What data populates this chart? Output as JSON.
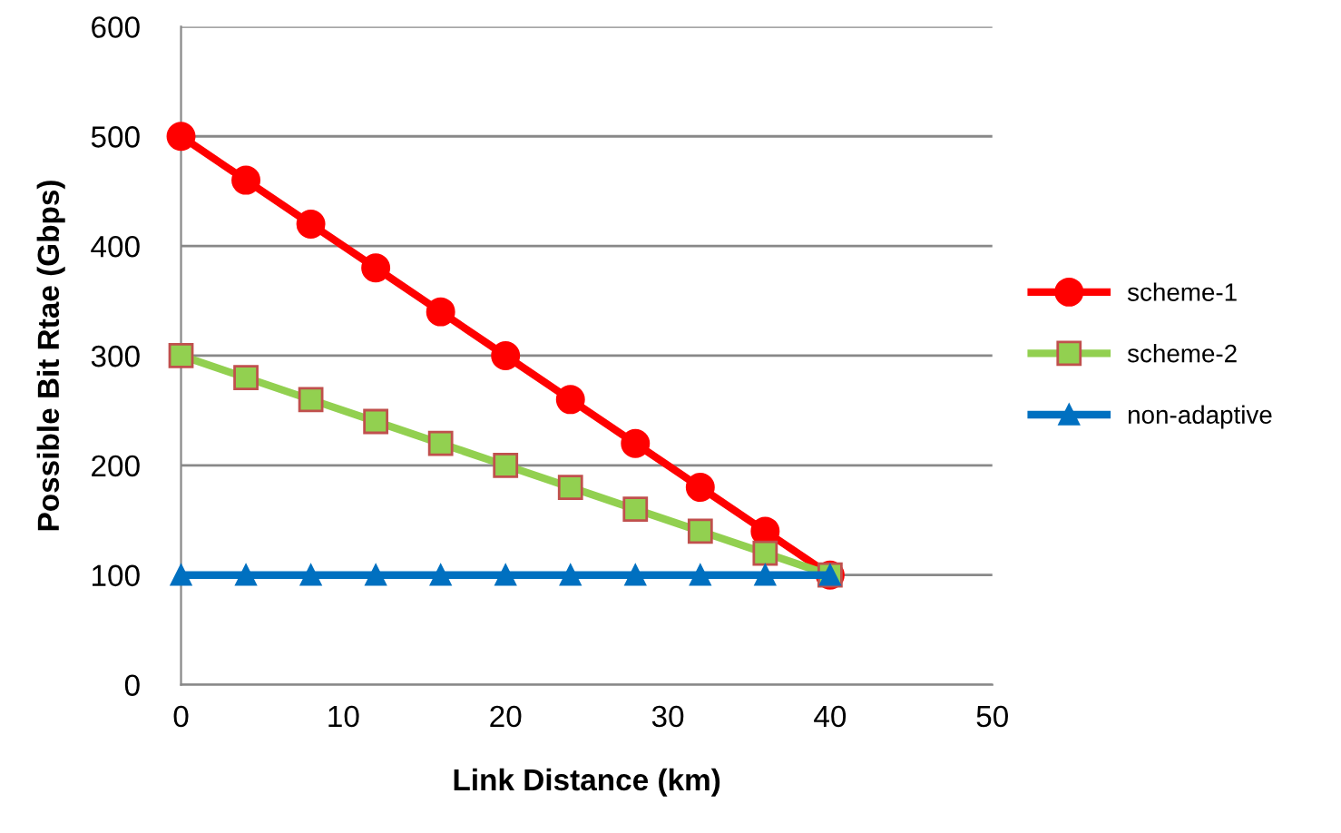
{
  "chart_data": {
    "type": "line",
    "xlabel": "Link Distance (km)",
    "ylabel": "Possible Bit Rtae (Gbps)",
    "x": [
      0,
      4,
      8,
      12,
      16,
      20,
      24,
      28,
      32,
      36,
      40
    ],
    "series": [
      {
        "name": "scheme-1",
        "color": "#ff0000",
        "marker": "circle",
        "values": [
          500,
          460,
          420,
          380,
          340,
          300,
          260,
          220,
          180,
          140,
          100
        ]
      },
      {
        "name": "scheme-2",
        "color": "#92d050",
        "marker": "square",
        "values": [
          300,
          280,
          260,
          240,
          220,
          200,
          180,
          160,
          140,
          120,
          100
        ]
      },
      {
        "name": "non-adaptive",
        "color": "#0070c0",
        "marker": "triangle",
        "values": [
          100,
          100,
          100,
          100,
          100,
          100,
          100,
          100,
          100,
          100,
          100
        ]
      }
    ],
    "xlim": [
      0,
      50
    ],
    "xticks": [
      0,
      10,
      20,
      30,
      40,
      50
    ],
    "ylim": [
      0,
      600
    ],
    "yticks": [
      0,
      100,
      200,
      300,
      400,
      500,
      600
    ],
    "grid": "y",
    "legend": "right",
    "line_style": "solid"
  }
}
